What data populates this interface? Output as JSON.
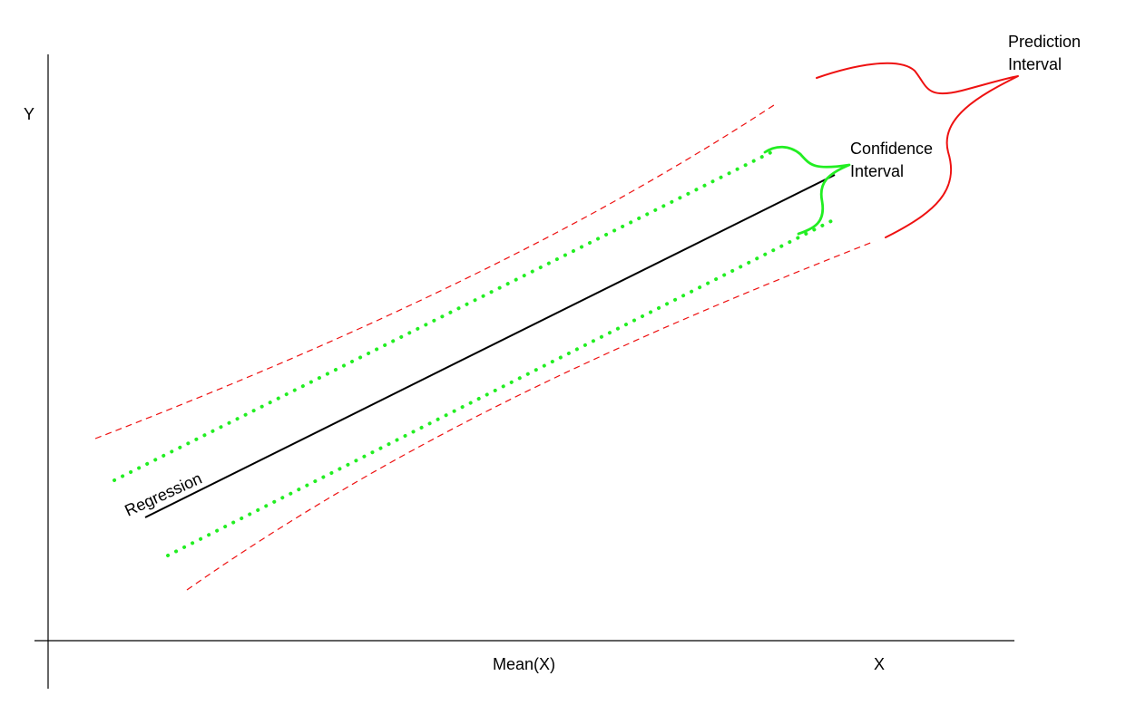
{
  "axes": {
    "y_label": "Y",
    "x_label": "X",
    "x_tick_label": "Mean(X)"
  },
  "labels": {
    "regression": "Regression",
    "confidence_line1": "Confidence",
    "confidence_line2": "Interval",
    "prediction_line1": "Prediction",
    "prediction_line2": "Interval"
  },
  "colors": {
    "axis": "#000000",
    "regression_line": "#000000",
    "confidence_band": "#22ee22",
    "confidence_brace": "#22ee22",
    "prediction_band": "#ee1111",
    "prediction_brace": "#ee1111"
  }
}
